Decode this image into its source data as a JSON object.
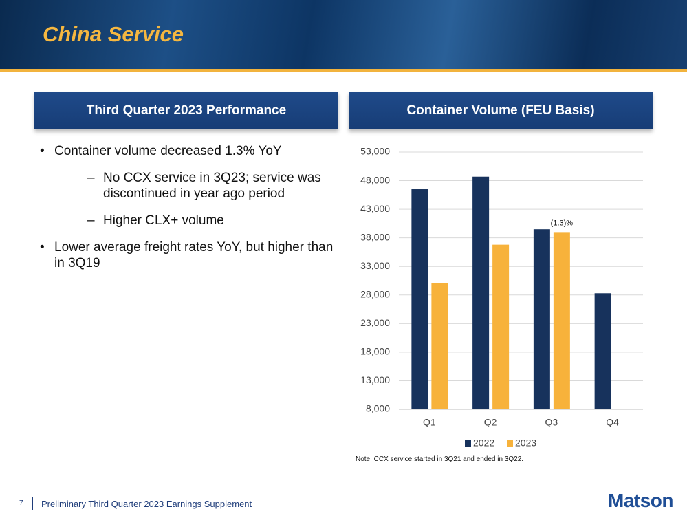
{
  "header": {
    "title": "China Service"
  },
  "left_panel": {
    "title": "Third Quarter 2023 Performance",
    "bullets": [
      {
        "text": "Container volume decreased 1.3% YoY",
        "sub": [
          "No CCX service in 3Q23; service was discontinued in year ago period",
          "Higher CLX+ volume"
        ]
      },
      {
        "text": "Lower average freight rates YoY, but higher than in 3Q19"
      }
    ]
  },
  "right_panel": {
    "title": "Container Volume (FEU Basis)"
  },
  "chart_data": {
    "type": "bar",
    "categories": [
      "Q1",
      "Q2",
      "Q3",
      "Q4"
    ],
    "series": [
      {
        "name": "2022",
        "color": "#17325c",
        "values": [
          46500,
          48700,
          39500,
          28300
        ]
      },
      {
        "name": "2023",
        "color": "#f7b23b",
        "values": [
          30100,
          36800,
          39000,
          null
        ]
      }
    ],
    "ylim": [
      8000,
      53000
    ],
    "yticks": [
      {
        "value": 8000,
        "label": "8,000"
      },
      {
        "value": 13000,
        "label": "13,000"
      },
      {
        "value": 18000,
        "label": "18,000"
      },
      {
        "value": 23000,
        "label": "23,000"
      },
      {
        "value": 28000,
        "label": "28,000"
      },
      {
        "value": 33000,
        "label": "33,000"
      },
      {
        "value": 38000,
        "label": "38,000"
      },
      {
        "value": 43000,
        "label": "43,000"
      },
      {
        "value": 48000,
        "label": "48,000"
      },
      {
        "value": 53000,
        "label": "53,000"
      }
    ],
    "grid": true,
    "legend": "bottom",
    "annotation": "(1.3)%"
  },
  "note": {
    "label": "Note",
    "text": ": CCX service started in 3Q21 and ended in 3Q22."
  },
  "footer": {
    "page": "7",
    "text": "Preliminary Third Quarter 2023 Earnings Supplement",
    "logo": "Matson"
  }
}
